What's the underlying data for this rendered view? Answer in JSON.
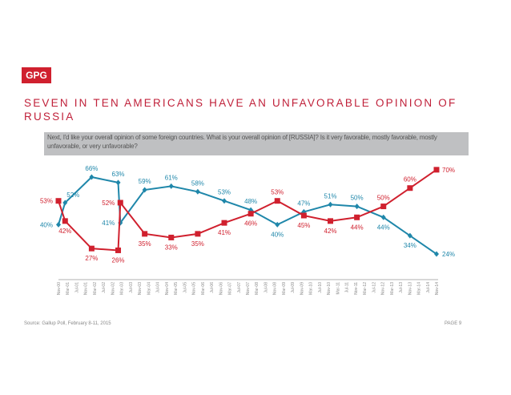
{
  "logo": "GPG",
  "title": "SEVEN IN TEN AMERICANS HAVE AN UNFAVORABLE OPINION OF RUSSIA",
  "question": "Next, I'd like your overall opinion of some foreign countries. What is your overall opinion of [RUSSIA]? Is it very favorable, mostly favorable, mostly unfavorable, or very unfavorable?",
  "source": "Source: Gallup Poll, February 8-11, 2015",
  "page": "PAGE 9",
  "chart_data": {
    "type": "line",
    "x_tick_labels": [
      "Nov-00",
      "Mar-01",
      "Jul-01",
      "Nov-01",
      "Mar-02",
      "Jul-02",
      "Nov-02",
      "Mar-03",
      "Jul-03",
      "Nov-03",
      "Mar-04",
      "Jul-04",
      "Nov-04",
      "Mar-05",
      "Jul-05",
      "Nov-05",
      "Mar-06",
      "Jul-06",
      "Nov-06",
      "Mar-07",
      "Jul-07",
      "Nov-07",
      "Mar-08",
      "Jul-08",
      "Nov-08",
      "Mar-09",
      "Jul-09",
      "Nov-09",
      "Mar-10",
      "Jul-10",
      "Nov-10",
      "Mar-11",
      "Jul-11",
      "Nov-11",
      "Mar-12",
      "Jul-12",
      "Nov-12",
      "Mar-13",
      "Jul-13",
      "Nov-13",
      "Mar-14",
      "Jul-14",
      "Nov-14"
    ],
    "x": [
      "Nov-00",
      "Feb-01",
      "Feb-02",
      "Feb-03",
      "Mar-03",
      "Feb-04",
      "Feb-05",
      "Feb-06",
      "Feb-07",
      "Feb-08",
      "Feb-09",
      "Feb-10",
      "Feb-11",
      "Feb-12",
      "Feb-13",
      "Feb-14",
      "Feb-15"
    ],
    "series": [
      {
        "color": "#1f87aa",
        "marker": "diamond",
        "values": [
          40,
          52,
          66,
          63,
          41,
          59,
          61,
          58,
          53,
          48,
          40,
          47,
          51,
          50,
          44,
          34,
          24
        ],
        "labels": [
          "40%",
          "52%",
          "66%",
          "63%",
          "41%",
          "59%",
          "61%",
          "58%",
          "53%",
          "48%",
          "40%",
          "47%",
          "51%",
          "50%",
          "44%",
          "34%",
          "24%"
        ]
      },
      {
        "color": "#d0202e",
        "marker": "square",
        "values": [
          53,
          42,
          27,
          26,
          52,
          35,
          33,
          35,
          41,
          46,
          53,
          45,
          42,
          44,
          50,
          60,
          70
        ],
        "labels": [
          "53%",
          "42%",
          "27%",
          "26%",
          "52%",
          "35%",
          "33%",
          "35%",
          "41%",
          "46%",
          "53%",
          "45%",
          "42%",
          "44%",
          "50%",
          "60%",
          "70%"
        ]
      }
    ],
    "y_unit": "%",
    "grid": false,
    "legend": "none"
  }
}
